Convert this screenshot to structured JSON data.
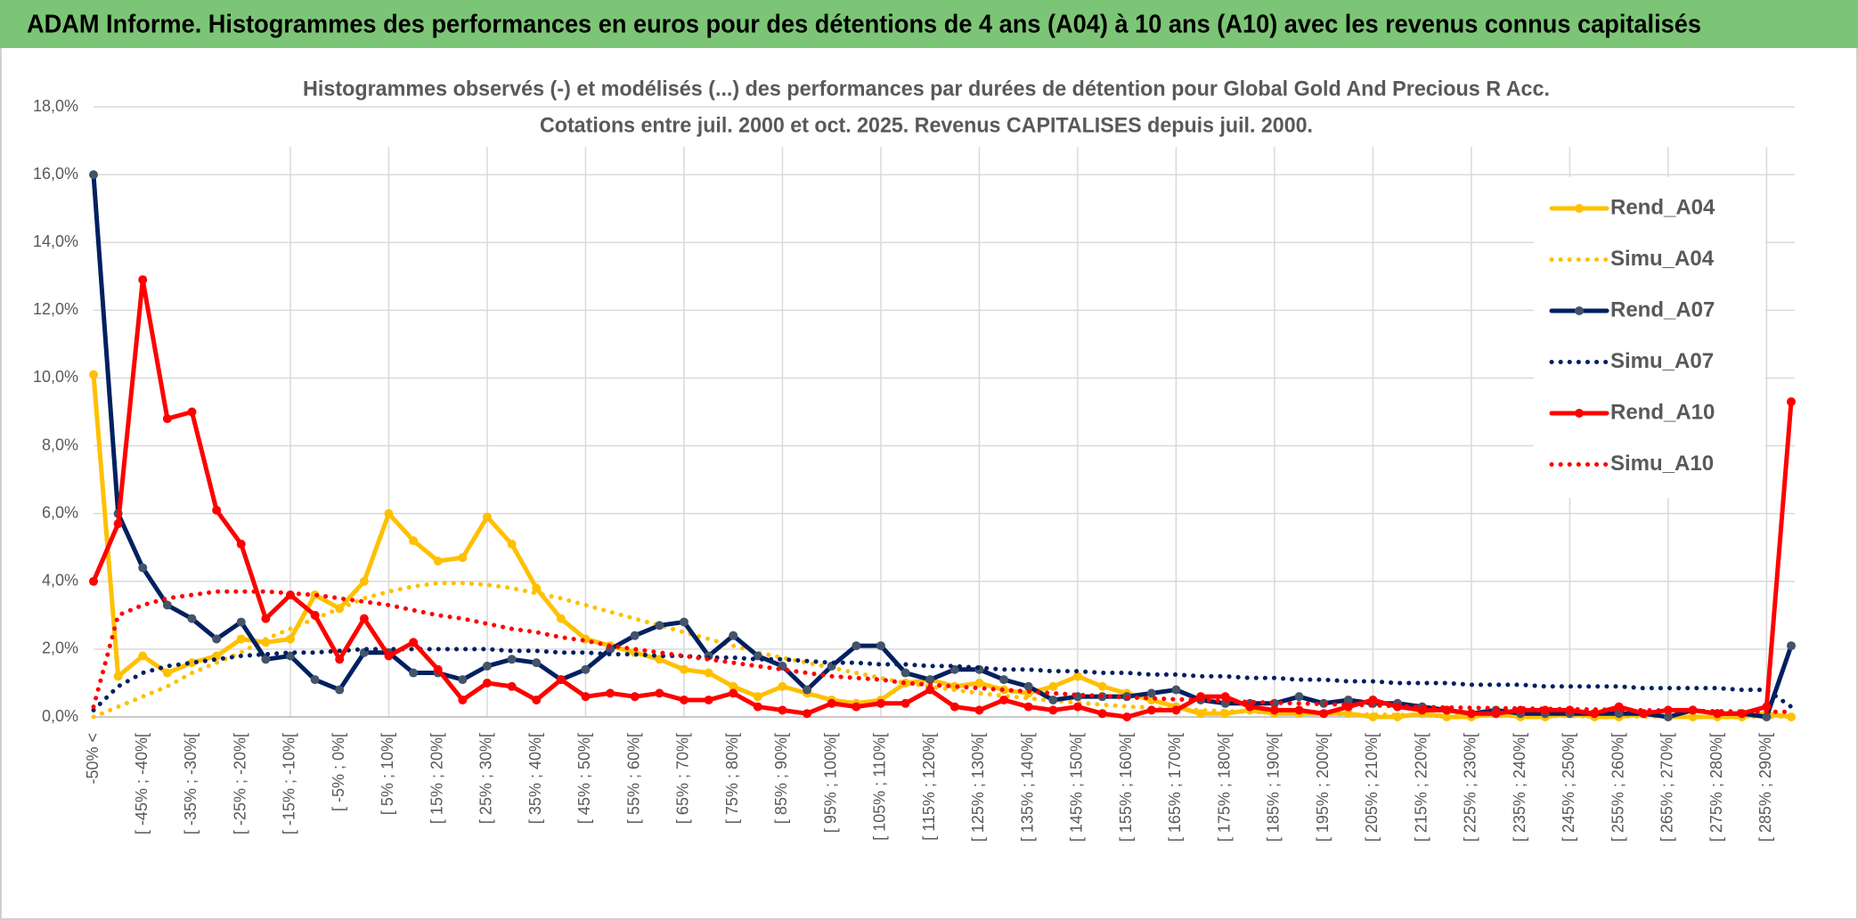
{
  "header": {
    "title": "ADAM Informe. Histogrammes des performances en euros pour des détentions de 4 ans (A04) à 10 ans (A10) avec les revenus connus capitalisés"
  },
  "chart_data": {
    "type": "line",
    "title": "Histogrammes observés (-) et modélisés (...) des performances par durées de détention pour Global Gold And Precious R Acc.",
    "subtitle": "Cotations entre juil. 2000 et oct. 2025. Revenus CAPITALISES depuis juil. 2000.",
    "categories": [
      "-50% <",
      null,
      "[ -45% ; -40%[",
      null,
      "[ -35% ; -30%[",
      null,
      "[ -25% ; -20%[",
      null,
      "[ -15% ; -10%[",
      null,
      "[ -5% ; 0%[",
      null,
      "[ 5% ; 10%[",
      null,
      "[ 15% ; 20%[",
      null,
      "[ 25% ; 30%[",
      null,
      "[ 35% ; 40%[",
      null,
      "[ 45% ; 50%[",
      null,
      "[ 55% ; 60%[",
      null,
      "[ 65% ; 70%[",
      null,
      "[ 75% ; 80%[",
      null,
      "[ 85% ; 90%[",
      null,
      "[ 95% ; 100%[",
      null,
      "[ 105% ; 110%[",
      null,
      "[ 115% ; 120%[",
      null,
      "[ 125% ; 130%[",
      null,
      "[ 135% ; 140%[",
      null,
      "[ 145% ; 150%[",
      null,
      "[ 155% ; 160%[",
      null,
      "[ 165% ; 170%[",
      null,
      "[ 175% ; 180%[",
      null,
      "[ 185% ; 190%[",
      null,
      "[ 195% ; 200%[",
      null,
      "[ 205% ; 210%[",
      null,
      "[ 215% ; 220%[",
      null,
      "[ 225% ; 230%[",
      null,
      "[ 235% ; 240%[",
      null,
      "[ 245% ; 250%[",
      null,
      "[ 255% ; 260%[",
      null,
      "[ 265% ; 270%[",
      null,
      "[ 275% ; 280%[",
      null,
      "[ 285% ; 290%[",
      null
    ],
    "series": [
      {
        "name": "Rend_A04",
        "color": "#FFC000",
        "style": "solid",
        "markers": true,
        "values": [
          10.1,
          1.2,
          1.8,
          1.3,
          1.6,
          1.8,
          2.3,
          2.2,
          2.3,
          3.6,
          3.2,
          4.0,
          6.0,
          5.2,
          4.6,
          4.7,
          5.9,
          5.1,
          3.8,
          2.9,
          2.3,
          2.1,
          1.9,
          1.7,
          1.4,
          1.3,
          0.9,
          0.6,
          0.9,
          0.7,
          0.5,
          0.4,
          0.5,
          1.0,
          1.1,
          0.9,
          1.0,
          0.8,
          0.7,
          0.9,
          1.2,
          0.9,
          0.7,
          0.5,
          0.3,
          0.1,
          0.1,
          0.2,
          0.1,
          0.1,
          0.1,
          0.1,
          0.0,
          0.0,
          0.1,
          0.0,
          0.0,
          0.1,
          0.0,
          0.0,
          0.1,
          0.0,
          0.0,
          0.1,
          0.0,
          0.0,
          0.0,
          0.0,
          0.1,
          0.0
        ]
      },
      {
        "name": "Simu_A04",
        "color": "#FFC000",
        "style": "dotted",
        "markers": false,
        "values": [
          0.0,
          0.3,
          0.6,
          0.9,
          1.3,
          1.6,
          1.9,
          2.3,
          2.6,
          2.9,
          3.2,
          3.5,
          3.7,
          3.85,
          3.95,
          3.95,
          3.9,
          3.8,
          3.65,
          3.5,
          3.3,
          3.1,
          2.9,
          2.7,
          2.5,
          2.3,
          2.1,
          1.9,
          1.75,
          1.6,
          1.45,
          1.3,
          1.15,
          1.0,
          0.9,
          0.8,
          0.7,
          0.62,
          0.55,
          0.48,
          0.42,
          0.36,
          0.31,
          0.27,
          0.23,
          0.2,
          0.17,
          0.15,
          0.13,
          0.11,
          0.1,
          0.08,
          0.07,
          0.06,
          0.05,
          0.05,
          0.04,
          0.04,
          0.03,
          0.03,
          0.02,
          0.02,
          0.02,
          0.01,
          0.01,
          0.01,
          0.01,
          0.01,
          0.01,
          0.01
        ]
      },
      {
        "name": "Rend_A07",
        "color": "#002060",
        "style": "solid",
        "markers": true,
        "values": [
          16.0,
          6.0,
          4.4,
          3.3,
          2.9,
          2.3,
          2.8,
          1.7,
          1.8,
          1.1,
          0.8,
          1.9,
          1.9,
          1.3,
          1.3,
          1.1,
          1.5,
          1.7,
          1.6,
          1.1,
          1.4,
          2.0,
          2.4,
          2.7,
          2.8,
          1.8,
          2.4,
          1.8,
          1.5,
          0.8,
          1.5,
          2.1,
          2.1,
          1.3,
          1.1,
          1.4,
          1.4,
          1.1,
          0.9,
          0.5,
          0.6,
          0.6,
          0.6,
          0.7,
          0.8,
          0.5,
          0.4,
          0.4,
          0.4,
          0.6,
          0.4,
          0.5,
          0.4,
          0.4,
          0.3,
          0.2,
          0.1,
          0.2,
          0.1,
          0.1,
          0.1,
          0.1,
          0.1,
          0.1,
          0.0,
          0.2,
          0.1,
          0.1,
          0.0,
          2.1
        ]
      },
      {
        "name": "Simu_A07",
        "color": "#002060",
        "style": "dotted",
        "markers": false,
        "values": [
          0.2,
          0.9,
          1.3,
          1.5,
          1.6,
          1.7,
          1.8,
          1.85,
          1.9,
          1.9,
          1.95,
          2.0,
          2.0,
          2.0,
          2.0,
          2.0,
          2.0,
          1.95,
          1.95,
          1.9,
          1.9,
          1.85,
          1.85,
          1.8,
          1.8,
          1.75,
          1.75,
          1.7,
          1.7,
          1.65,
          1.6,
          1.6,
          1.55,
          1.55,
          1.5,
          1.5,
          1.45,
          1.4,
          1.4,
          1.35,
          1.35,
          1.3,
          1.3,
          1.25,
          1.25,
          1.2,
          1.2,
          1.15,
          1.15,
          1.1,
          1.1,
          1.05,
          1.05,
          1.0,
          1.0,
          1.0,
          0.95,
          0.95,
          0.95,
          0.9,
          0.9,
          0.9,
          0.9,
          0.85,
          0.85,
          0.85,
          0.85,
          0.8,
          0.8,
          0.3
        ]
      },
      {
        "name": "Rend_A10",
        "color": "#FF0000",
        "style": "solid",
        "markers": true,
        "values": [
          4.0,
          5.7,
          12.9,
          8.8,
          9.0,
          6.1,
          5.1,
          2.9,
          3.6,
          3.0,
          1.7,
          2.9,
          1.8,
          2.2,
          1.4,
          0.5,
          1.0,
          0.9,
          0.5,
          1.1,
          0.6,
          0.7,
          0.6,
          0.7,
          0.5,
          0.5,
          0.7,
          0.3,
          0.2,
          0.1,
          0.4,
          0.3,
          0.4,
          0.4,
          0.8,
          0.3,
          0.2,
          0.5,
          0.3,
          0.2,
          0.3,
          0.1,
          0.0,
          0.2,
          0.2,
          0.6,
          0.6,
          0.3,
          0.2,
          0.2,
          0.1,
          0.3,
          0.5,
          0.3,
          0.2,
          0.2,
          0.1,
          0.1,
          0.2,
          0.2,
          0.2,
          0.1,
          0.3,
          0.1,
          0.2,
          0.2,
          0.1,
          0.1,
          0.3,
          9.3
        ]
      },
      {
        "name": "Simu_A10",
        "color": "#FF0000",
        "style": "dotted",
        "markers": false,
        "values": [
          0.3,
          3.0,
          3.3,
          3.5,
          3.6,
          3.7,
          3.7,
          3.7,
          3.65,
          3.6,
          3.5,
          3.4,
          3.3,
          3.15,
          3.0,
          2.9,
          2.75,
          2.6,
          2.5,
          2.35,
          2.25,
          2.1,
          2.0,
          1.9,
          1.8,
          1.7,
          1.6,
          1.5,
          1.4,
          1.3,
          1.2,
          1.15,
          1.1,
          1.0,
          0.95,
          0.9,
          0.85,
          0.8,
          0.75,
          0.7,
          0.65,
          0.62,
          0.58,
          0.55,
          0.52,
          0.5,
          0.47,
          0.44,
          0.42,
          0.4,
          0.38,
          0.36,
          0.34,
          0.32,
          0.3,
          0.28,
          0.27,
          0.26,
          0.25,
          0.24,
          0.23,
          0.22,
          0.21,
          0.2,
          0.19,
          0.18,
          0.17,
          0.16,
          0.15,
          0.15
        ]
      }
    ],
    "ylim": [
      0,
      18
    ],
    "yticks": [
      {
        "value": 0,
        "label": "0,0%"
      },
      {
        "value": 2,
        "label": "2,0%"
      },
      {
        "value": 4,
        "label": "4,0%"
      },
      {
        "value": 6,
        "label": "6,0%"
      },
      {
        "value": 8,
        "label": "8,0%"
      },
      {
        "value": 10,
        "label": "10,0%"
      },
      {
        "value": 12,
        "label": "12,0%"
      },
      {
        "value": 14,
        "label": "14,0%"
      },
      {
        "value": 16,
        "label": "16,0%"
      },
      {
        "value": 18,
        "label": "18,0%"
      }
    ],
    "grid": true,
    "legend": "right"
  }
}
